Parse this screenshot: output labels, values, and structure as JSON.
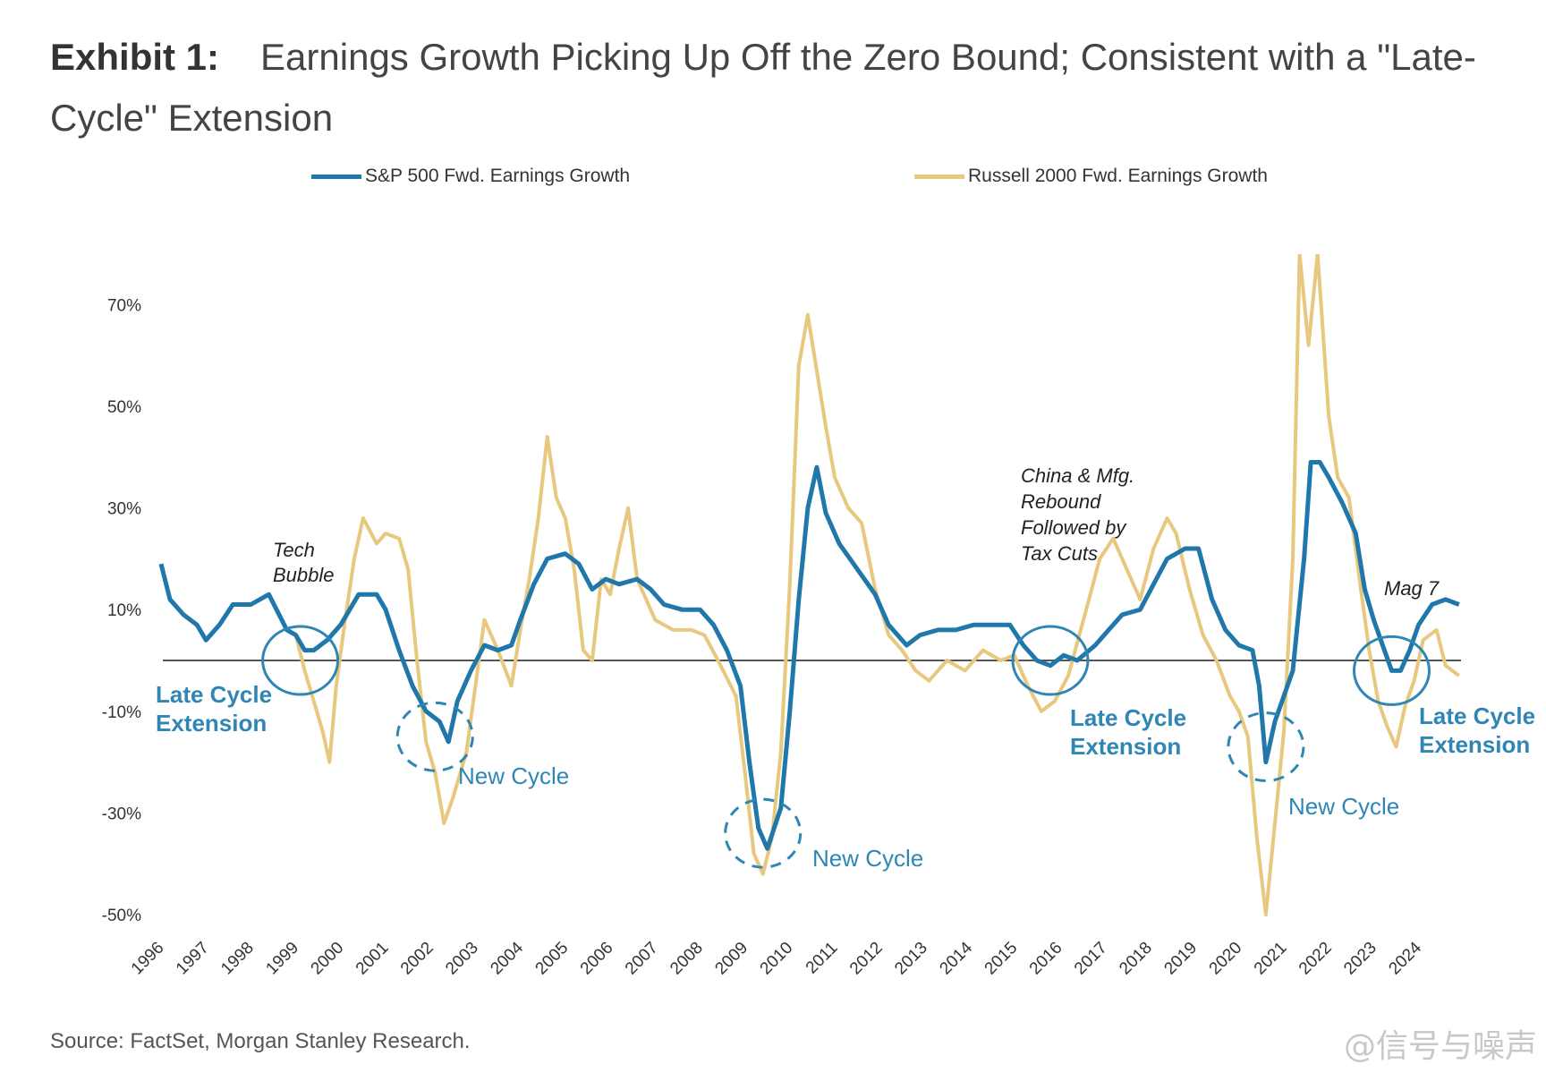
{
  "header": {
    "exhibit": "Exhibit 1:",
    "title_line1": "Earnings Growth Picking Up Off the Zero Bound; Consistent with a \"Late-",
    "title_line2": "Cycle\" Extension"
  },
  "source": "Source: FactSet, Morgan Stanley Research.",
  "watermark": "@信号与噪声",
  "colors": {
    "sp500": "#1f77aa",
    "russell": "#e8c77e",
    "annotation": "#2f86b4",
    "zero_line": "#555555"
  },
  "chart_data": {
    "type": "line",
    "title": "Earnings Growth Picking Up Off the Zero Bound; Consistent with a \"Late-Cycle\" Extension",
    "xlabel": "",
    "ylabel": "",
    "xlim": [
      1996,
      2025
    ],
    "ylim": [
      -50,
      80
    ],
    "y_ticks": [
      "70%",
      "50%",
      "30%",
      "10%",
      "-10%",
      "-30%",
      "-50%"
    ],
    "y_tick_values": [
      70,
      50,
      30,
      10,
      -10,
      -30,
      -50
    ],
    "x_ticks": [
      "1996",
      "1997",
      "1998",
      "1999",
      "2000",
      "2001",
      "2002",
      "2003",
      "2004",
      "2005",
      "2006",
      "2007",
      "2008",
      "2009",
      "2010",
      "2011",
      "2012",
      "2013",
      "2014",
      "2015",
      "2016",
      "2017",
      "2018",
      "2019",
      "2020",
      "2021",
      "2022",
      "2023",
      "2024"
    ],
    "grid": false,
    "legend": "top",
    "series": [
      {
        "name": "S&P 500 Fwd. Earnings Growth",
        "color": "#1f77aa",
        "points": [
          [
            1996.0,
            19
          ],
          [
            1996.2,
            12
          ],
          [
            1996.5,
            9
          ],
          [
            1996.8,
            7
          ],
          [
            1997.0,
            4
          ],
          [
            1997.3,
            7
          ],
          [
            1997.6,
            11
          ],
          [
            1998.0,
            11
          ],
          [
            1998.4,
            13
          ],
          [
            1998.8,
            6
          ],
          [
            1999.0,
            5
          ],
          [
            1999.2,
            2
          ],
          [
            1999.4,
            2
          ],
          [
            1999.7,
            4
          ],
          [
            2000.0,
            7
          ],
          [
            2000.4,
            13
          ],
          [
            2000.8,
            13
          ],
          [
            2001.0,
            10
          ],
          [
            2001.3,
            2
          ],
          [
            2001.6,
            -5
          ],
          [
            2001.9,
            -10
          ],
          [
            2002.2,
            -12
          ],
          [
            2002.4,
            -16
          ],
          [
            2002.6,
            -8
          ],
          [
            2002.9,
            -2
          ],
          [
            2003.2,
            3
          ],
          [
            2003.5,
            2
          ],
          [
            2003.8,
            3
          ],
          [
            2004.0,
            8
          ],
          [
            2004.3,
            15
          ],
          [
            2004.6,
            20
          ],
          [
            2005.0,
            21
          ],
          [
            2005.3,
            19
          ],
          [
            2005.6,
            14
          ],
          [
            2005.9,
            16
          ],
          [
            2006.2,
            15
          ],
          [
            2006.6,
            16
          ],
          [
            2006.9,
            14
          ],
          [
            2007.2,
            11
          ],
          [
            2007.6,
            10
          ],
          [
            2008.0,
            10
          ],
          [
            2008.3,
            7
          ],
          [
            2008.6,
            2
          ],
          [
            2008.9,
            -5
          ],
          [
            2009.1,
            -20
          ],
          [
            2009.3,
            -33
          ],
          [
            2009.5,
            -37
          ],
          [
            2009.8,
            -29
          ],
          [
            2010.0,
            -10
          ],
          [
            2010.2,
            12
          ],
          [
            2010.4,
            30
          ],
          [
            2010.6,
            38
          ],
          [
            2010.8,
            29
          ],
          [
            2011.1,
            23
          ],
          [
            2011.5,
            18
          ],
          [
            2011.9,
            13
          ],
          [
            2012.2,
            7
          ],
          [
            2012.6,
            3
          ],
          [
            2012.9,
            5
          ],
          [
            2013.3,
            6
          ],
          [
            2013.7,
            6
          ],
          [
            2014.1,
            7
          ],
          [
            2014.5,
            7
          ],
          [
            2014.9,
            7
          ],
          [
            2015.2,
            3
          ],
          [
            2015.5,
            0
          ],
          [
            2015.8,
            -1
          ],
          [
            2016.1,
            1
          ],
          [
            2016.4,
            0
          ],
          [
            2016.8,
            3
          ],
          [
            2017.1,
            6
          ],
          [
            2017.4,
            9
          ],
          [
            2017.8,
            10
          ],
          [
            2018.1,
            15
          ],
          [
            2018.4,
            20
          ],
          [
            2018.8,
            22
          ],
          [
            2019.1,
            22
          ],
          [
            2019.4,
            12
          ],
          [
            2019.7,
            6
          ],
          [
            2020.0,
            3
          ],
          [
            2020.3,
            2
          ],
          [
            2020.45,
            -5
          ],
          [
            2020.6,
            -20
          ],
          [
            2020.8,
            -12
          ],
          [
            2021.0,
            -7
          ],
          [
            2021.2,
            -2
          ],
          [
            2021.45,
            20
          ],
          [
            2021.6,
            39
          ],
          [
            2021.8,
            39
          ],
          [
            2022.0,
            36
          ],
          [
            2022.3,
            31
          ],
          [
            2022.6,
            25
          ],
          [
            2022.8,
            14
          ],
          [
            2023.0,
            8
          ],
          [
            2023.2,
            3
          ],
          [
            2023.4,
            -2
          ],
          [
            2023.6,
            -2
          ],
          [
            2023.8,
            2
          ],
          [
            2024.0,
            7
          ],
          [
            2024.3,
            11
          ],
          [
            2024.6,
            12
          ],
          [
            2024.9,
            11
          ]
        ]
      },
      {
        "name": "Russell 2000 Fwd. Earnings Growth",
        "color": "#e8c77e",
        "points": [
          [
            1999.0,
            5
          ],
          [
            1999.2,
            -2
          ],
          [
            1999.4,
            -8
          ],
          [
            1999.6,
            -14
          ],
          [
            1999.75,
            -20
          ],
          [
            1999.9,
            -5
          ],
          [
            2000.1,
            8
          ],
          [
            2000.3,
            20
          ],
          [
            2000.5,
            28
          ],
          [
            2000.8,
            23
          ],
          [
            2001.0,
            25
          ],
          [
            2001.3,
            24
          ],
          [
            2001.5,
            18
          ],
          [
            2001.7,
            0
          ],
          [
            2001.9,
            -16
          ],
          [
            2002.1,
            -22
          ],
          [
            2002.3,
            -32
          ],
          [
            2002.5,
            -27
          ],
          [
            2002.8,
            -18
          ],
          [
            2003.0,
            -5
          ],
          [
            2003.2,
            8
          ],
          [
            2003.5,
            2
          ],
          [
            2003.8,
            -5
          ],
          [
            2004.0,
            6
          ],
          [
            2004.2,
            16
          ],
          [
            2004.4,
            28
          ],
          [
            2004.6,
            44
          ],
          [
            2004.8,
            32
          ],
          [
            2005.0,
            28
          ],
          [
            2005.2,
            18
          ],
          [
            2005.4,
            2
          ],
          [
            2005.6,
            0
          ],
          [
            2005.8,
            16
          ],
          [
            2006.0,
            13
          ],
          [
            2006.2,
            22
          ],
          [
            2006.4,
            30
          ],
          [
            2006.6,
            16
          ],
          [
            2006.8,
            12
          ],
          [
            2007.0,
            8
          ],
          [
            2007.4,
            6
          ],
          [
            2007.8,
            6
          ],
          [
            2008.1,
            5
          ],
          [
            2008.4,
            0
          ],
          [
            2008.8,
            -7
          ],
          [
            2009.0,
            -22
          ],
          [
            2009.2,
            -38
          ],
          [
            2009.4,
            -42
          ],
          [
            2009.6,
            -35
          ],
          [
            2009.8,
            -18
          ],
          [
            2010.0,
            15
          ],
          [
            2010.2,
            58
          ],
          [
            2010.4,
            68
          ],
          [
            2010.6,
            57
          ],
          [
            2010.8,
            46
          ],
          [
            2011.0,
            36
          ],
          [
            2011.3,
            30
          ],
          [
            2011.6,
            27
          ],
          [
            2011.9,
            14
          ],
          [
            2012.2,
            5
          ],
          [
            2012.5,
            2
          ],
          [
            2012.8,
            -2
          ],
          [
            2013.1,
            -4
          ],
          [
            2013.5,
            0
          ],
          [
            2013.9,
            -2
          ],
          [
            2014.3,
            2
          ],
          [
            2014.7,
            0
          ],
          [
            2015.0,
            1
          ],
          [
            2015.3,
            -5
          ],
          [
            2015.6,
            -10
          ],
          [
            2015.9,
            -8
          ],
          [
            2016.2,
            -3
          ],
          [
            2016.6,
            10
          ],
          [
            2016.9,
            20
          ],
          [
            2017.2,
            24
          ],
          [
            2017.5,
            18
          ],
          [
            2017.8,
            12
          ],
          [
            2018.1,
            22
          ],
          [
            2018.4,
            28
          ],
          [
            2018.6,
            25
          ],
          [
            2018.9,
            14
          ],
          [
            2019.2,
            5
          ],
          [
            2019.5,
            0
          ],
          [
            2019.8,
            -7
          ],
          [
            2020.0,
            -10
          ],
          [
            2020.2,
            -15
          ],
          [
            2020.4,
            -35
          ],
          [
            2020.6,
            -50
          ],
          [
            2020.8,
            -32
          ],
          [
            2021.0,
            -14
          ],
          [
            2021.2,
            20
          ],
          [
            2021.35,
            80
          ],
          [
            2021.55,
            62
          ],
          [
            2021.75,
            80
          ],
          [
            2022.0,
            48
          ],
          [
            2022.2,
            36
          ],
          [
            2022.45,
            32
          ],
          [
            2022.7,
            15
          ],
          [
            2022.9,
            2
          ],
          [
            2023.1,
            -8
          ],
          [
            2023.3,
            -13
          ],
          [
            2023.5,
            -17
          ],
          [
            2023.7,
            -9
          ],
          [
            2023.9,
            -4
          ],
          [
            2024.1,
            4
          ],
          [
            2024.4,
            6
          ],
          [
            2024.6,
            -1
          ],
          [
            2024.9,
            -3
          ]
        ]
      }
    ],
    "zero_line": 0,
    "annotations": [
      {
        "text": [
          "Tech",
          "Bubble"
        ],
        "style": "italic"
      },
      {
        "text": [
          "Late Cycle",
          "Extension"
        ],
        "style": "bold"
      },
      {
        "text": [
          "New Cycle"
        ],
        "style": "plain"
      },
      {
        "text": [
          "New Cycle"
        ],
        "style": "plain"
      },
      {
        "text": [
          "China & Mfg.",
          "Rebound",
          "Followed by",
          "Tax Cuts"
        ],
        "style": "italic"
      },
      {
        "text": [
          "Late Cycle",
          "Extension"
        ],
        "style": "bold"
      },
      {
        "text": [
          "New Cycle"
        ],
        "style": "plain"
      },
      {
        "text": [
          "Mag 7"
        ],
        "style": "italic"
      },
      {
        "text": [
          "Late Cycle",
          "Extension"
        ],
        "style": "bold"
      }
    ],
    "cycle_markers": [
      {
        "year": 1999.1,
        "value": 0,
        "type": "late-cycle"
      },
      {
        "year": 2002.1,
        "value": -15,
        "type": "new-cycle"
      },
      {
        "year": 2009.4,
        "value": -34,
        "type": "new-cycle"
      },
      {
        "year": 2015.8,
        "value": 0,
        "type": "late-cycle"
      },
      {
        "year": 2020.6,
        "value": -17,
        "type": "new-cycle"
      },
      {
        "year": 2023.4,
        "value": -2,
        "type": "late-cycle"
      }
    ]
  }
}
